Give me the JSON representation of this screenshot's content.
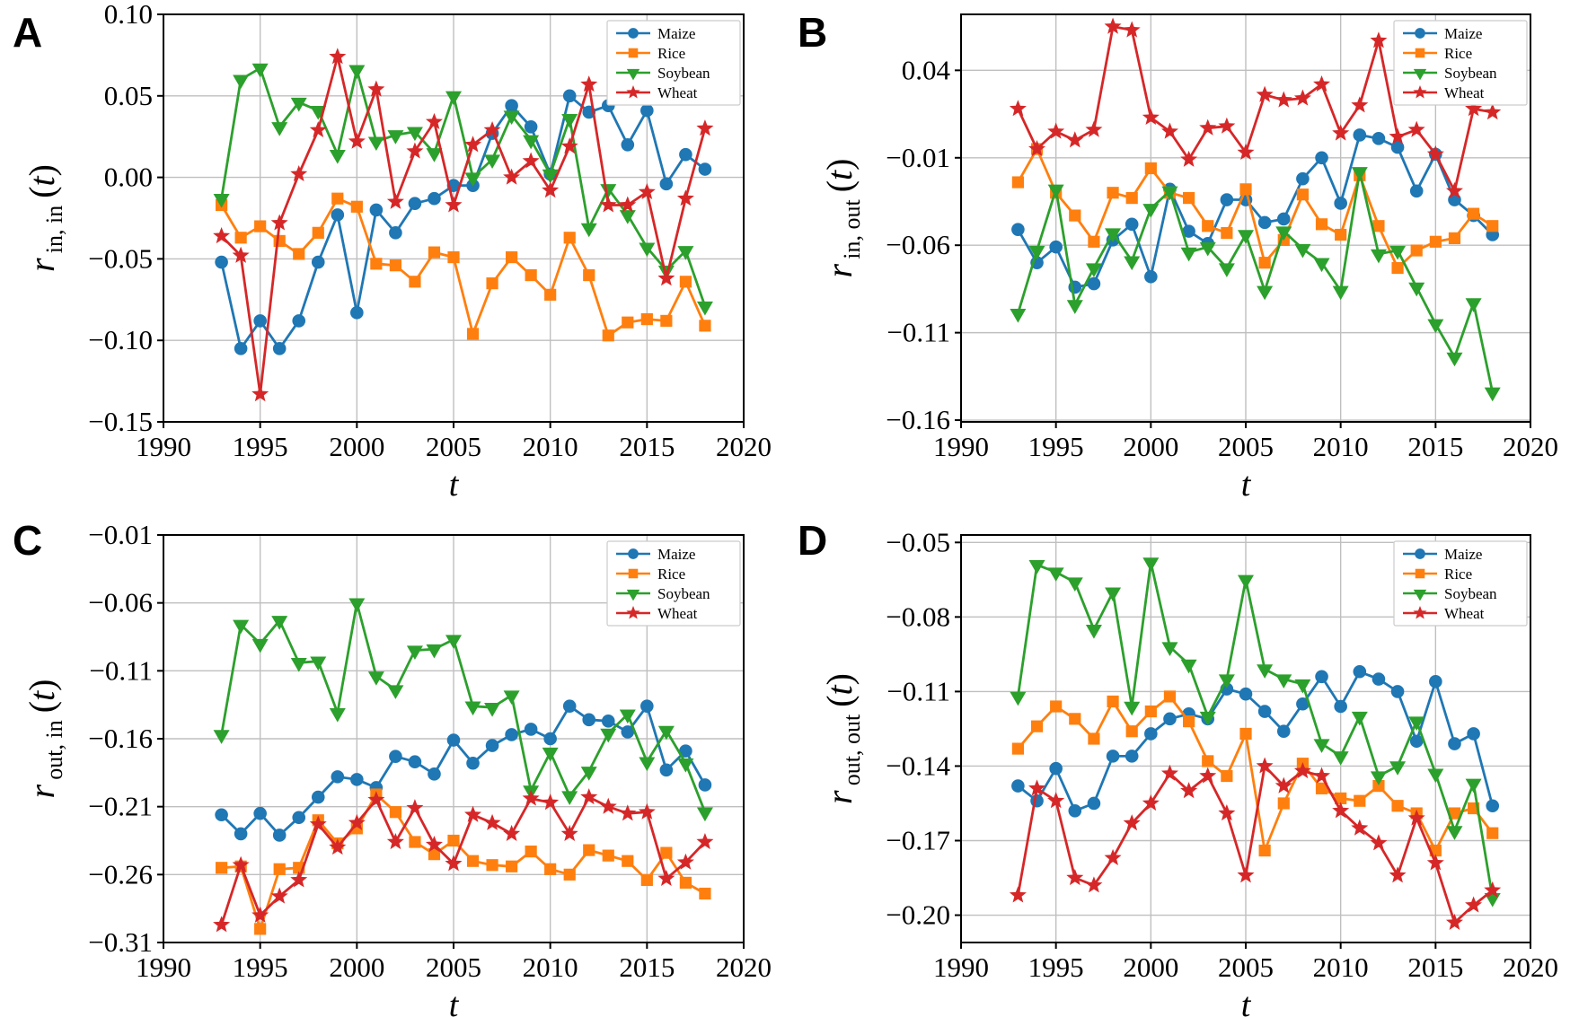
{
  "figure": {
    "background": "#ffffff"
  },
  "chart_data": {
    "type": "line",
    "years": [
      1993,
      1994,
      1995,
      1996,
      1997,
      1998,
      1999,
      2000,
      2001,
      2002,
      2003,
      2004,
      2005,
      2006,
      2007,
      2008,
      2009,
      2010,
      2011,
      2012,
      2013,
      2014,
      2015,
      2016,
      2017,
      2018
    ],
    "x_axis": {
      "label": "t",
      "min": 1990,
      "max": 2020,
      "ticks": [
        1990,
        1995,
        2000,
        2005,
        2010,
        2015,
        2020
      ],
      "tick_labels": [
        "1990",
        "1995",
        "2000",
        "2005",
        "2010",
        "2015",
        "2020"
      ]
    },
    "series_meta": [
      {
        "name": "Maize",
        "color": "#1f77b4",
        "marker": "circle"
      },
      {
        "name": "Rice",
        "color": "#ff7f0e",
        "marker": "square"
      },
      {
        "name": "Soybean",
        "color": "#2ca02c",
        "marker": "triangle-down"
      },
      {
        "name": "Wheat",
        "color": "#d62728",
        "marker": "star"
      }
    ],
    "legend": {
      "position": "top-right",
      "labels": [
        "Maize",
        "Rice",
        "Soybean",
        "Wheat"
      ]
    },
    "grid": true,
    "panels": [
      {
        "letter": "A",
        "ylabel": "r_{in, in}(t)",
        "ylabel_base": "r",
        "ylabel_sub": "in, in",
        "ylabel_open": "(",
        "ylabel_t": "t",
        "ylabel_close": ")",
        "xlabel": "t",
        "ymin": -0.15,
        "ymax": 0.1,
        "yticks": [
          0.1,
          0.05,
          0.0,
          -0.05,
          -0.1,
          -0.15
        ],
        "ytick_labels": [
          "0.10",
          "0.05",
          "0.00",
          "−0.05",
          "−0.10",
          "−0.15"
        ],
        "series": {
          "Maize": [
            -0.052,
            -0.105,
            -0.088,
            -0.105,
            -0.088,
            -0.052,
            -0.023,
            -0.083,
            -0.02,
            -0.034,
            -0.016,
            -0.013,
            -0.005,
            -0.005,
            0.027,
            0.044,
            0.031,
            0.002,
            0.05,
            0.04,
            0.044,
            0.02,
            0.041,
            -0.004,
            0.014,
            0.005
          ],
          "Rice": [
            -0.017,
            -0.037,
            -0.03,
            -0.039,
            -0.047,
            -0.034,
            -0.013,
            -0.018,
            -0.053,
            -0.054,
            -0.064,
            -0.046,
            -0.049,
            -0.096,
            -0.065,
            -0.049,
            -0.06,
            -0.072,
            -0.037,
            -0.06,
            -0.097,
            -0.089,
            -0.087,
            -0.088,
            -0.064,
            -0.091
          ],
          "Soybean": [
            -0.013,
            0.06,
            0.067,
            0.031,
            0.046,
            0.041,
            0.014,
            0.066,
            0.022,
            0.026,
            0.028,
            0.015,
            0.05,
            0.0,
            0.011,
            0.038,
            0.023,
            0.002,
            0.036,
            -0.031,
            -0.007,
            -0.023,
            -0.043,
            -0.057,
            -0.045,
            -0.079
          ],
          "Wheat": [
            -0.036,
            -0.048,
            -0.133,
            -0.028,
            0.002,
            0.029,
            0.074,
            0.022,
            0.054,
            -0.015,
            0.016,
            0.034,
            -0.017,
            0.02,
            0.029,
            0.0,
            0.01,
            -0.008,
            0.019,
            0.057,
            -0.017,
            -0.017,
            -0.009,
            -0.062,
            -0.013,
            0.03
          ]
        }
      },
      {
        "letter": "B",
        "ylabel": "r_{in, out}(t)",
        "ylabel_base": "r",
        "ylabel_sub": "in, out",
        "ylabel_open": "(",
        "ylabel_t": "t",
        "ylabel_close": ")",
        "xlabel": "t",
        "ymin": -0.161,
        "ymax": 0.072,
        "yticks": [
          0.04,
          -0.01,
          -0.06,
          -0.11,
          -0.16
        ],
        "ytick_labels": [
          "0.04",
          "−0.01",
          "−0.06",
          "−0.11",
          "−0.16"
        ],
        "series": {
          "Maize": [
            -0.051,
            -0.07,
            -0.061,
            -0.084,
            -0.082,
            -0.057,
            -0.048,
            -0.078,
            -0.028,
            -0.052,
            -0.059,
            -0.034,
            -0.034,
            -0.047,
            -0.045,
            -0.022,
            -0.01,
            -0.036,
            0.003,
            0.001,
            -0.004,
            -0.029,
            -0.008,
            -0.034,
            -0.043,
            -0.054
          ],
          "Rice": [
            -0.024,
            -0.005,
            -0.03,
            -0.043,
            -0.058,
            -0.03,
            -0.033,
            -0.016,
            -0.03,
            -0.033,
            -0.049,
            -0.053,
            -0.028,
            -0.07,
            -0.057,
            -0.031,
            -0.048,
            -0.054,
            -0.02,
            -0.049,
            -0.073,
            -0.063,
            -0.058,
            -0.056,
            -0.042,
            -0.049
          ],
          "Soybean": [
            -0.099,
            -0.063,
            -0.028,
            -0.094,
            -0.073,
            -0.053,
            -0.069,
            -0.039,
            -0.029,
            -0.064,
            -0.061,
            -0.073,
            -0.054,
            -0.086,
            -0.052,
            -0.062,
            -0.07,
            -0.086,
            -0.018,
            -0.065,
            -0.063,
            -0.084,
            -0.105,
            -0.124,
            -0.093,
            -0.144
          ],
          "Wheat": [
            0.018,
            -0.005,
            0.005,
            0.0,
            0.006,
            0.065,
            0.063,
            0.013,
            0.005,
            -0.011,
            0.007,
            0.008,
            -0.007,
            0.026,
            0.023,
            0.024,
            0.032,
            0.004,
            0.02,
            0.057,
            0.002,
            0.006,
            -0.008,
            -0.029,
            0.018,
            0.016
          ]
        }
      },
      {
        "letter": "C",
        "ylabel": "r_{out, in}(t)",
        "ylabel_base": "r",
        "ylabel_sub": "out, in",
        "ylabel_open": "(",
        "ylabel_t": "t",
        "ylabel_close": ")",
        "xlabel": "t",
        "ymin": -0.31,
        "ymax": -0.01,
        "yticks": [
          -0.01,
          -0.06,
          -0.11,
          -0.16,
          -0.21,
          -0.26,
          -0.31
        ],
        "ytick_labels": [
          "−0.01",
          "−0.06",
          "−0.11",
          "−0.16",
          "−0.21",
          "−0.26",
          "−0.31"
        ],
        "series": {
          "Maize": [
            -0.216,
            -0.23,
            -0.215,
            -0.231,
            -0.218,
            -0.203,
            -0.188,
            -0.19,
            -0.196,
            -0.173,
            -0.177,
            -0.186,
            -0.161,
            -0.178,
            -0.165,
            -0.157,
            -0.153,
            -0.16,
            -0.136,
            -0.146,
            -0.147,
            -0.155,
            -0.136,
            -0.183,
            -0.169,
            -0.194
          ],
          "Rice": [
            -0.255,
            -0.254,
            -0.3,
            -0.256,
            -0.255,
            -0.22,
            -0.237,
            -0.226,
            -0.201,
            -0.214,
            -0.236,
            -0.245,
            -0.235,
            -0.25,
            -0.253,
            -0.254,
            -0.243,
            -0.256,
            -0.26,
            -0.242,
            -0.246,
            -0.25,
            -0.264,
            -0.244,
            -0.266,
            -0.274
          ],
          "Soybean": [
            -0.157,
            -0.076,
            -0.09,
            -0.073,
            -0.104,
            -0.103,
            -0.141,
            -0.06,
            -0.114,
            -0.124,
            -0.095,
            -0.094,
            -0.087,
            -0.136,
            -0.137,
            -0.128,
            -0.198,
            -0.17,
            -0.202,
            -0.184,
            -0.156,
            -0.142,
            -0.177,
            -0.154,
            -0.178,
            -0.214
          ],
          "Wheat": [
            -0.297,
            -0.253,
            -0.29,
            -0.276,
            -0.264,
            -0.223,
            -0.24,
            -0.222,
            -0.205,
            -0.236,
            -0.211,
            -0.238,
            -0.252,
            -0.216,
            -0.222,
            -0.23,
            -0.204,
            -0.207,
            -0.23,
            -0.203,
            -0.21,
            -0.215,
            -0.214,
            -0.263,
            -0.251,
            -0.236
          ]
        }
      },
      {
        "letter": "D",
        "ylabel": "r_{out, out}(t)",
        "ylabel_base": "r",
        "ylabel_sub": "out, out",
        "ylabel_open": "(",
        "ylabel_t": "t",
        "ylabel_close": ")",
        "xlabel": "t",
        "ymin": -0.211,
        "ymax": -0.047,
        "yticks": [
          -0.05,
          -0.08,
          -0.11,
          -0.14,
          -0.17,
          -0.2
        ],
        "ytick_labels": [
          "−0.05",
          "−0.08",
          "−0.11",
          "−0.14",
          "−0.17",
          "−0.20"
        ],
        "series": {
          "Maize": [
            -0.148,
            -0.154,
            -0.141,
            -0.158,
            -0.155,
            -0.136,
            -0.136,
            -0.127,
            -0.121,
            -0.119,
            -0.121,
            -0.109,
            -0.111,
            -0.118,
            -0.126,
            -0.115,
            -0.104,
            -0.116,
            -0.102,
            -0.105,
            -0.11,
            -0.13,
            -0.106,
            -0.131,
            -0.127,
            -0.156
          ],
          "Rice": [
            -0.133,
            -0.124,
            -0.116,
            -0.121,
            -0.129,
            -0.114,
            -0.126,
            -0.118,
            -0.112,
            -0.122,
            -0.138,
            -0.144,
            -0.127,
            -0.174,
            -0.155,
            -0.139,
            -0.149,
            -0.153,
            -0.154,
            -0.148,
            -0.156,
            -0.159,
            -0.174,
            -0.159,
            -0.157,
            -0.167
          ],
          "Soybean": [
            -0.112,
            -0.059,
            -0.062,
            -0.066,
            -0.085,
            -0.07,
            -0.116,
            -0.058,
            -0.092,
            -0.099,
            -0.12,
            -0.105,
            -0.065,
            -0.101,
            -0.105,
            -0.107,
            -0.131,
            -0.136,
            -0.12,
            -0.144,
            -0.14,
            -0.122,
            -0.143,
            -0.166,
            -0.147,
            -0.193
          ],
          "Wheat": [
            -0.192,
            -0.149,
            -0.154,
            -0.185,
            -0.188,
            -0.177,
            -0.163,
            -0.155,
            -0.143,
            -0.15,
            -0.144,
            -0.159,
            -0.184,
            -0.14,
            -0.148,
            -0.142,
            -0.144,
            -0.158,
            -0.165,
            -0.171,
            -0.184,
            -0.161,
            -0.179,
            -0.203,
            -0.196,
            -0.19
          ]
        }
      }
    ]
  }
}
